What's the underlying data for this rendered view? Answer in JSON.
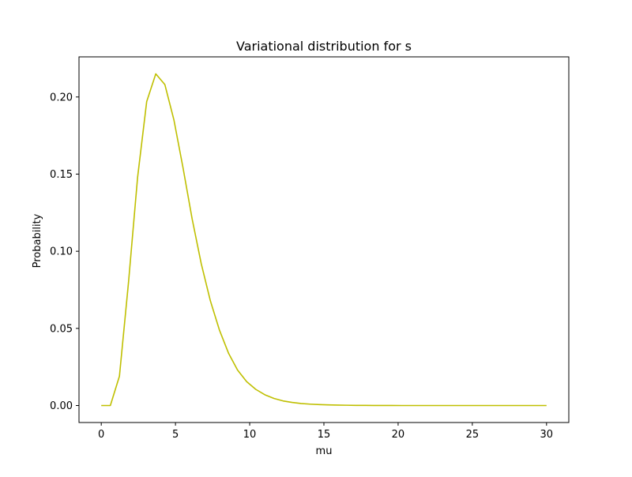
{
  "chart_data": {
    "type": "line",
    "title": "Variational distribution for s",
    "xlabel": "mu",
    "ylabel": "Probability",
    "xlim": [
      -1.5,
      31.5
    ],
    "ylim": [
      -0.011,
      0.226
    ],
    "xticks": [
      0,
      5,
      10,
      15,
      20,
      25,
      30
    ],
    "xtick_labels": [
      "0",
      "5",
      "10",
      "15",
      "20",
      "25",
      "30"
    ],
    "yticks": [
      0.0,
      0.05,
      0.1,
      0.15,
      0.2
    ],
    "ytick_labels": [
      "0.00",
      "0.05",
      "0.10",
      "0.15",
      "0.20"
    ],
    "grid": false,
    "legend": "none",
    "series": [
      {
        "color": "#bfbf00",
        "x": [
          0,
          0.612,
          1.224,
          1.837,
          2.449,
          3.061,
          3.673,
          4.286,
          4.898,
          5.51,
          6.122,
          6.735,
          7.347,
          7.959,
          8.571,
          9.184,
          9.796,
          10.408,
          11.02,
          11.633,
          12.245,
          12.857,
          13.469,
          14.082,
          14.694,
          15.306,
          15.918,
          16.531,
          17.143,
          17.755,
          18.367,
          18.98,
          19.592,
          20.204,
          20.816,
          21.429,
          22.041,
          22.653,
          23.265,
          23.878,
          24.49,
          25.102,
          25.714,
          26.327,
          26.939,
          27.551,
          28.163,
          28.776,
          29.388,
          30.0
        ],
        "y": [
          0.0,
          0.0,
          0.019,
          0.08,
          0.148,
          0.197,
          0.215,
          0.208,
          0.185,
          0.154,
          0.121,
          0.092,
          0.068,
          0.049,
          0.034,
          0.023,
          0.0155,
          0.0105,
          0.007,
          0.0046,
          0.003,
          0.002,
          0.0013,
          0.0009,
          0.0006,
          0.0004,
          0.0003,
          0.0002,
          0.00012,
          8e-05,
          5e-05,
          3e-05,
          2e-05,
          1e-05,
          0.0,
          0.0,
          0.0,
          0.0,
          0.0,
          0.0,
          0.0,
          0.0,
          0.0,
          0.0,
          0.0,
          0.0,
          0.0,
          0.0,
          0.0,
          0.0
        ]
      }
    ]
  }
}
